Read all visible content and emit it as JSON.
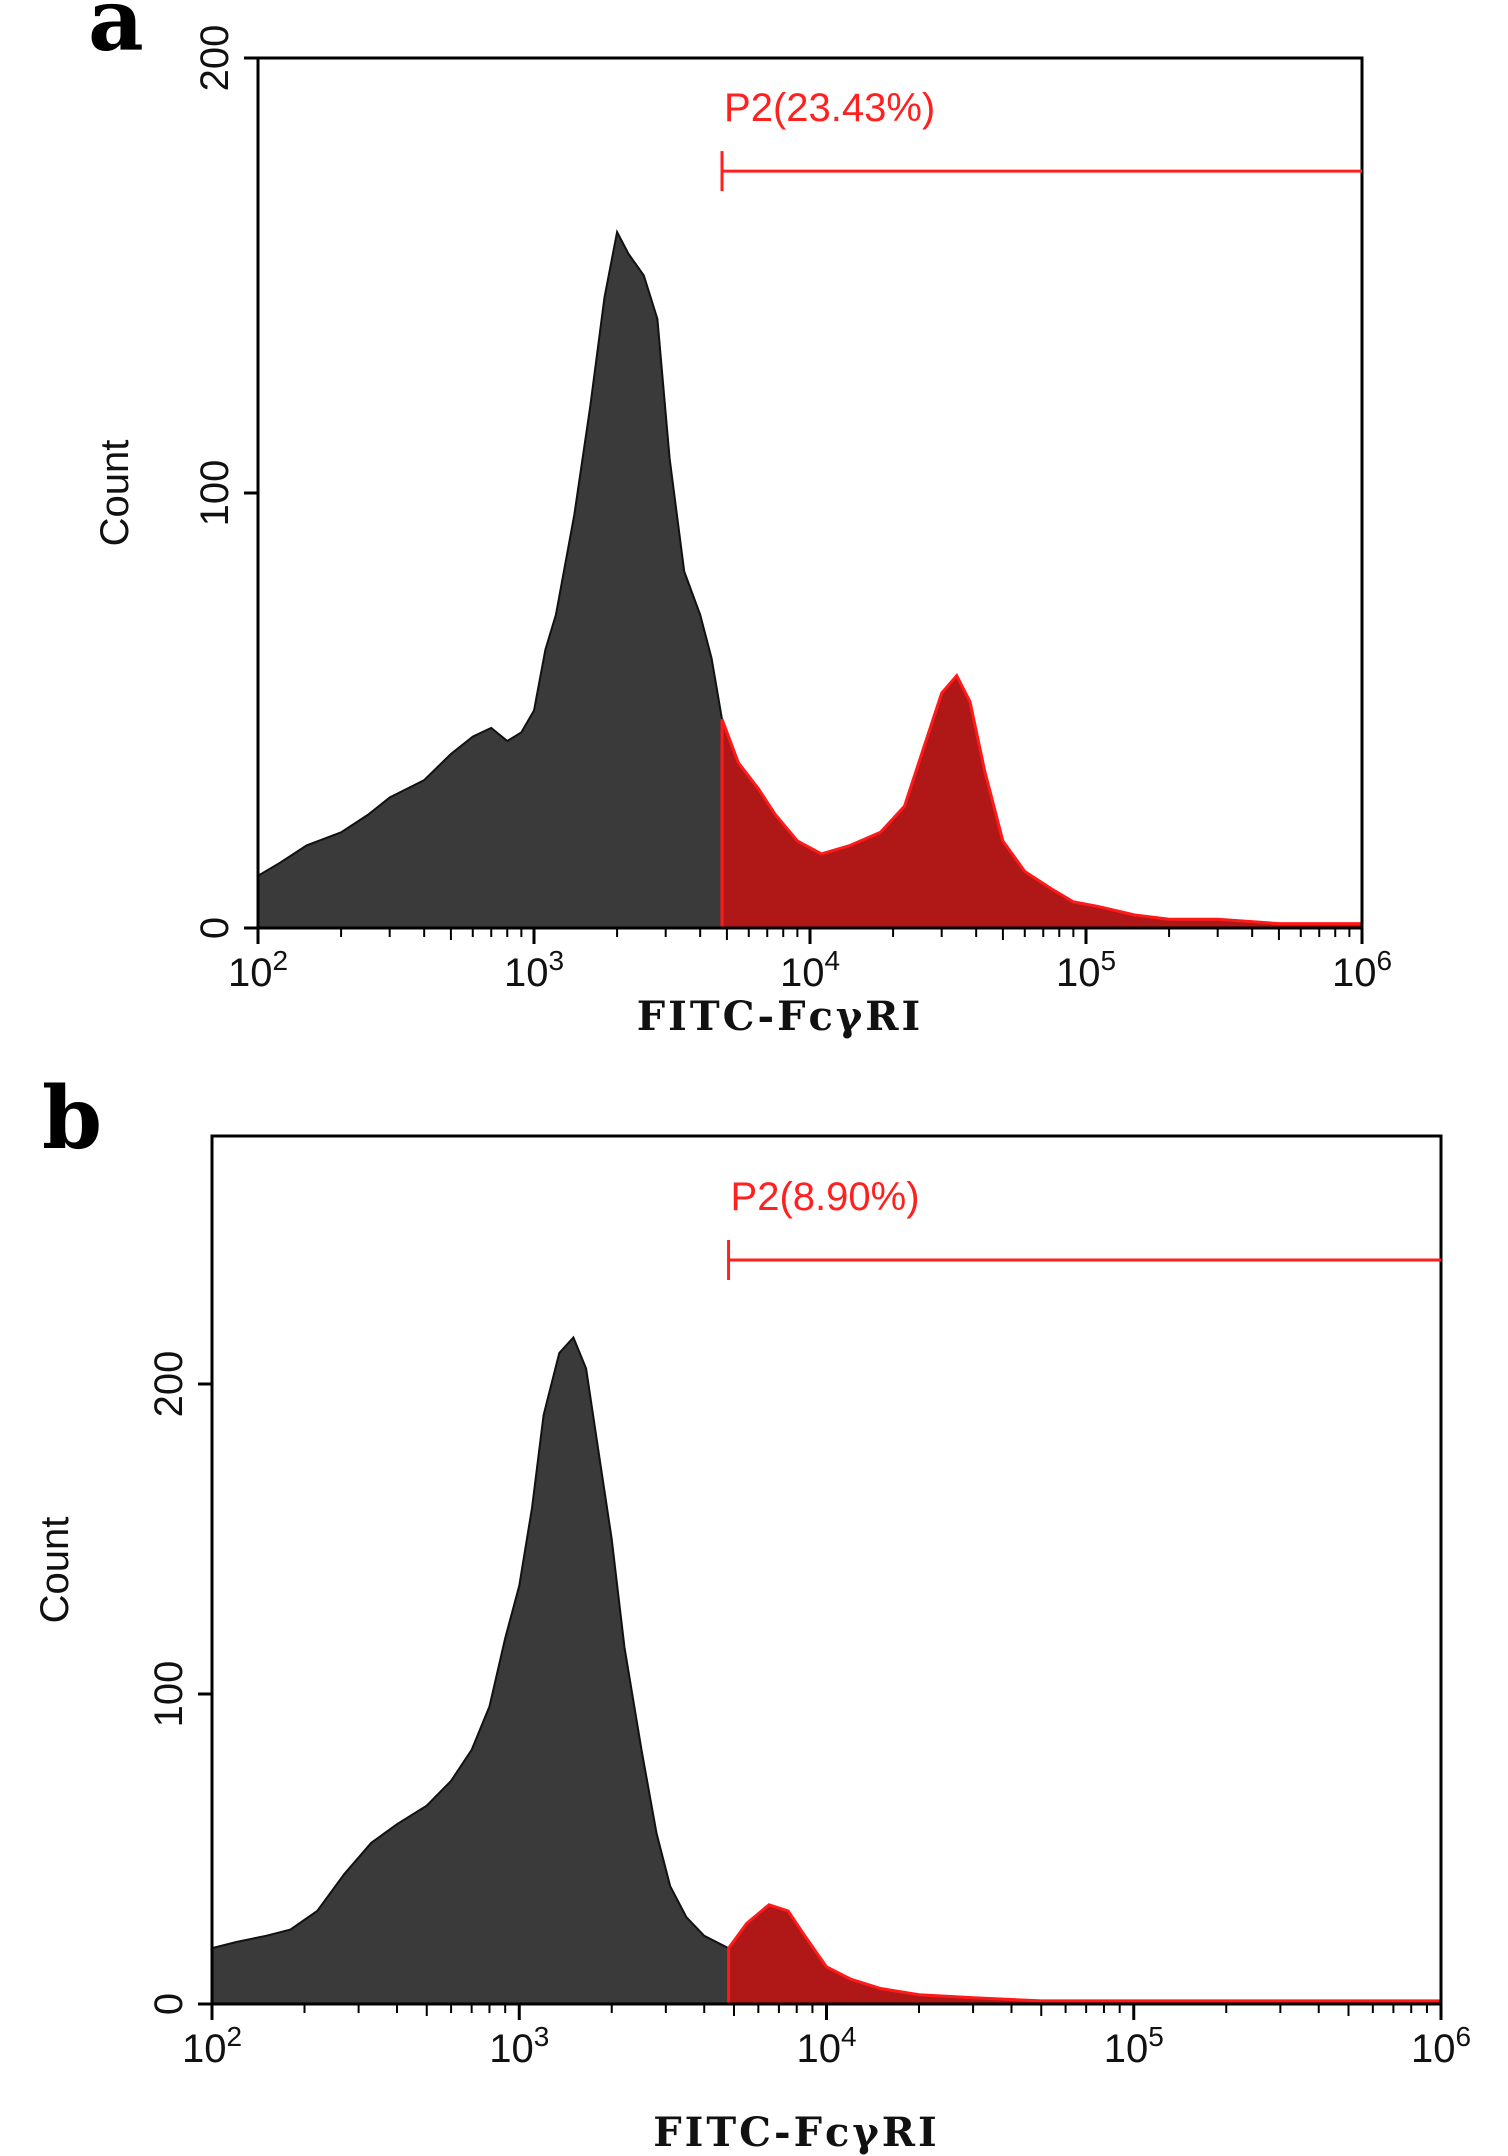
{
  "chart_data": [
    {
      "panel": "a",
      "type": "area",
      "xlabel": "FITC-FcγRI",
      "ylabel": "Count",
      "xscale": "log",
      "xlim": [
        100,
        1000000
      ],
      "ylim": [
        0,
        200
      ],
      "xticks": [
        {
          "base": "10",
          "exp": "2",
          "value": 100
        },
        {
          "base": "10",
          "exp": "3",
          "value": 1000
        },
        {
          "base": "10",
          "exp": "4",
          "value": 10000
        },
        {
          "base": "10",
          "exp": "5",
          "value": 100000
        },
        {
          "base": "10",
          "exp": "6",
          "value": 1000000
        }
      ],
      "yticks": [
        0,
        100,
        200
      ],
      "gate": {
        "label": "P2(23.43%)",
        "start": 4800,
        "end": 1000000,
        "level": 174
      },
      "fill_colors": {
        "negative": "#3a3a3a",
        "positive": "#b01818",
        "outline_positive": "#ff1a1a"
      },
      "series": [
        {
          "name": "histogram",
          "x": [
            100,
            120,
            150,
            200,
            250,
            300,
            400,
            500,
            600,
            700,
            800,
            900,
            1000,
            1100,
            1200,
            1400,
            1600,
            1800,
            2000,
            2200,
            2500,
            2800,
            3100,
            3500,
            4000,
            4400,
            4800,
            5500,
            6500,
            7500,
            9000,
            11000,
            14000,
            18000,
            22000,
            26000,
            30000,
            34000,
            38000,
            43000,
            50000,
            60000,
            75000,
            90000,
            110000,
            150000,
            200000,
            300000,
            500000,
            700000,
            900000,
            1000000
          ],
          "y": [
            12,
            15,
            19,
            22,
            26,
            30,
            34,
            40,
            44,
            46,
            43,
            45,
            50,
            64,
            72,
            95,
            120,
            145,
            160,
            155,
            150,
            140,
            108,
            82,
            72,
            62,
            48,
            38,
            32,
            26,
            20,
            17,
            19,
            22,
            28,
            42,
            54,
            58,
            52,
            36,
            20,
            13,
            9,
            6,
            5,
            3,
            2,
            2,
            1,
            1,
            1,
            1
          ]
        }
      ]
    },
    {
      "panel": "b",
      "type": "area",
      "xlabel": "FITC-FcγRI",
      "ylabel": "Count",
      "xscale": "log",
      "xlim": [
        100,
        1000000
      ],
      "ylim": [
        0,
        280
      ],
      "xticks": [
        {
          "base": "10",
          "exp": "2",
          "value": 100
        },
        {
          "base": "10",
          "exp": "3",
          "value": 1000
        },
        {
          "base": "10",
          "exp": "4",
          "value": 10000
        },
        {
          "base": "10",
          "exp": "5",
          "value": 100000
        },
        {
          "base": "10",
          "exp": "6",
          "value": 1000000
        }
      ],
      "yticks": [
        0,
        100,
        200
      ],
      "gate": {
        "label": "P2(8.90%)",
        "start": 4800,
        "end": 1000000,
        "level": 240
      },
      "fill_colors": {
        "negative": "#3a3a3a",
        "positive": "#b01818",
        "outline_positive": "#ff1a1a"
      },
      "series": [
        {
          "name": "histogram",
          "x": [
            100,
            120,
            150,
            180,
            220,
            270,
            330,
            400,
            500,
            600,
            700,
            800,
            900,
            1000,
            1100,
            1200,
            1350,
            1500,
            1650,
            1800,
            2000,
            2200,
            2500,
            2800,
            3100,
            3500,
            4000,
            4800,
            5500,
            6500,
            7500,
            8500,
            10000,
            12000,
            15000,
            20000,
            30000,
            50000,
            100000,
            200000,
            500000,
            1000000
          ],
          "y": [
            18,
            20,
            22,
            24,
            30,
            42,
            52,
            58,
            64,
            72,
            82,
            96,
            118,
            135,
            160,
            190,
            210,
            215,
            205,
            180,
            150,
            115,
            82,
            55,
            38,
            28,
            22,
            18,
            26,
            32,
            30,
            22,
            12,
            8,
            5,
            3,
            2,
            1,
            1,
            1,
            1,
            1
          ]
        }
      ]
    }
  ]
}
